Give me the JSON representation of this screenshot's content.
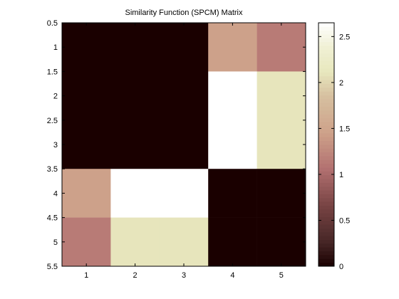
{
  "chart_data": {
    "type": "heatmap",
    "title": "Similarity Function (SPCM) Matrix",
    "xlabel": "",
    "ylabel": "",
    "x_categories": [
      1,
      2,
      3,
      4,
      5
    ],
    "y_categories": [
      1,
      2,
      3,
      4,
      5
    ],
    "x_ticks": [
      1,
      2,
      3,
      4,
      5
    ],
    "y_ticks": [
      0.5,
      1,
      1.5,
      2,
      2.5,
      3,
      3.5,
      4,
      4.5,
      5,
      5.5
    ],
    "xlim": [
      0.5,
      5.5
    ],
    "ylim": [
      0.5,
      5.5
    ],
    "y_axis_reversed": true,
    "values": [
      [
        0,
        0,
        0,
        1.45,
        1.15
      ],
      [
        0,
        0,
        0,
        2.65,
        2.1
      ],
      [
        0,
        0,
        0,
        2.65,
        2.1
      ],
      [
        1.45,
        2.65,
        2.65,
        0,
        0
      ],
      [
        1.15,
        2.1,
        2.1,
        0,
        0
      ]
    ],
    "colorbar": {
      "range": [
        0,
        2.65
      ],
      "ticks": [
        0,
        0.5,
        1,
        1.5,
        2,
        2.5
      ],
      "colormap": "pink",
      "levels": 64,
      "placement": "right"
    },
    "grid": false
  }
}
